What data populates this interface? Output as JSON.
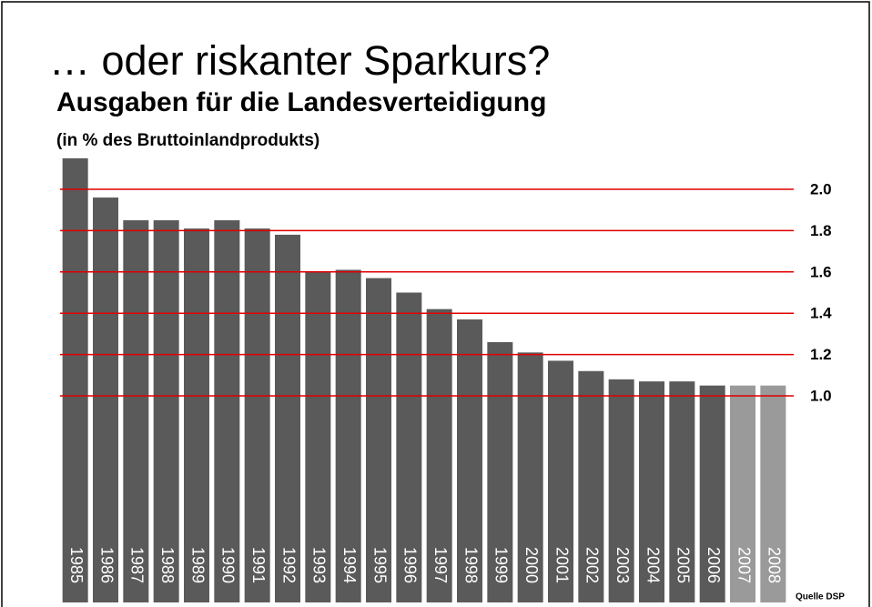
{
  "chart_data": {
    "type": "bar",
    "title": "… oder riskanter Sparkurs?",
    "subtitle": "Ausgaben für die Landesverteidigung",
    "y_label": "(in % des Bruttoinlandprodukts)",
    "source": "Quelle DSP",
    "categories": [
      "1985",
      "1986",
      "1987",
      "1988",
      "1989",
      "1990",
      "1991",
      "1992",
      "1993",
      "1994",
      "1995",
      "1996",
      "1997",
      "1998",
      "1999",
      "2000",
      "2001",
      "2002",
      "2003",
      "2004",
      "2005",
      "2006",
      "2007",
      "2008"
    ],
    "values": [
      2.15,
      1.96,
      1.85,
      1.85,
      1.81,
      1.85,
      1.81,
      1.78,
      1.6,
      1.61,
      1.57,
      1.5,
      1.42,
      1.37,
      1.26,
      1.21,
      1.17,
      1.12,
      1.08,
      1.07,
      1.07,
      1.05,
      1.05,
      1.05
    ],
    "colors": [
      "#5a5a5a",
      "#5a5a5a",
      "#5a5a5a",
      "#5a5a5a",
      "#5a5a5a",
      "#5a5a5a",
      "#5a5a5a",
      "#5a5a5a",
      "#5a5a5a",
      "#5a5a5a",
      "#5a5a5a",
      "#5a5a5a",
      "#5a5a5a",
      "#5a5a5a",
      "#5a5a5a",
      "#5a5a5a",
      "#5a5a5a",
      "#5a5a5a",
      "#5a5a5a",
      "#5a5a5a",
      "#5a5a5a",
      "#5a5a5a",
      "#9a9a9a",
      "#9a9a9a"
    ],
    "grid_color": "#e00000",
    "ylim": [
      0,
      2.2
    ],
    "yticks": [
      {
        "value": 1,
        "label": "1.0"
      },
      1.2,
      1.4,
      1.6,
      1.8,
      {
        "value": 2,
        "label": "2.0"
      }
    ],
    "grid": true
  }
}
